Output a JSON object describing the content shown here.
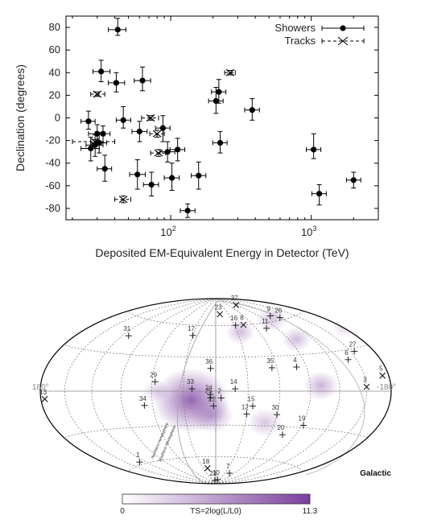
{
  "chart_data": [
    {
      "type": "scatter",
      "ylabel": "Declination (degrees)",
      "xlabel": "Deposited EM-Equivalent Energy in Detector (TeV)",
      "xscale": "log",
      "xlim": [
        18,
        3000
      ],
      "ylim": [
        -90,
        90
      ],
      "yticks": [
        "80",
        "60",
        "40",
        "20",
        "0",
        "-20",
        "-40",
        "-60",
        "-80"
      ],
      "ytick_values": [
        80,
        60,
        40,
        20,
        0,
        -20,
        -40,
        -60,
        -80
      ],
      "xticks": [
        "10^2",
        "10^3"
      ],
      "xtick_values": [
        100,
        1000
      ],
      "grid": false,
      "legend_placement": "top-right",
      "series": [
        {
          "name": "Showers",
          "marker": "filled-circle",
          "line": "solid",
          "points": [
            {
              "x": 42,
              "y": 78,
              "xlo": 36,
              "xhi": 48,
              "ylo": 73,
              "yhi": 88
            },
            {
              "x": 32,
              "y": 41,
              "xlo": 28,
              "xhi": 37,
              "ylo": 32,
              "yhi": 51
            },
            {
              "x": 41,
              "y": 31,
              "xlo": 36,
              "xhi": 47,
              "ylo": 23,
              "yhi": 40
            },
            {
              "x": 63,
              "y": 33,
              "xlo": 55,
              "xhi": 72,
              "ylo": 24,
              "yhi": 45
            },
            {
              "x": 26,
              "y": -3,
              "xlo": 23,
              "xhi": 29,
              "ylo": -10,
              "yhi": 6
            },
            {
              "x": 46,
              "y": -2,
              "xlo": 41,
              "xhi": 52,
              "ylo": -9,
              "yhi": 10
            },
            {
              "x": 30,
              "y": -14,
              "xlo": 26,
              "xhi": 34,
              "ylo": -22,
              "yhi": -6
            },
            {
              "x": 33,
              "y": -14,
              "xlo": 29,
              "xhi": 37,
              "ylo": -22,
              "yhi": -7
            },
            {
              "x": 27,
              "y": -27,
              "xlo": 23,
              "xhi": 31,
              "ylo": -38,
              "yhi": -17
            },
            {
              "x": 29,
              "y": -24,
              "xlo": 25,
              "xhi": 33,
              "ylo": -34,
              "yhi": -15
            },
            {
              "x": 31,
              "y": -22,
              "xlo": 27,
              "xhi": 35,
              "ylo": -31,
              "yhi": -13
            },
            {
              "x": 34,
              "y": -45,
              "xlo": 30,
              "xhi": 38,
              "ylo": -56,
              "yhi": -33
            },
            {
              "x": 60,
              "y": -12,
              "xlo": 53,
              "xhi": 68,
              "ylo": -21,
              "yhi": -3
            },
            {
              "x": 88,
              "y": -9,
              "xlo": 78,
              "xhi": 99,
              "ylo": -21,
              "yhi": 2
            },
            {
              "x": 95,
              "y": -30,
              "xlo": 84,
              "xhi": 107,
              "ylo": -39,
              "yhi": -21
            },
            {
              "x": 112,
              "y": -28,
              "xlo": 99,
              "xhi": 126,
              "ylo": -38,
              "yhi": -18
            },
            {
              "x": 58,
              "y": -50,
              "xlo": 51,
              "xhi": 66,
              "ylo": -63,
              "yhi": -37
            },
            {
              "x": 73,
              "y": -59,
              "xlo": 64,
              "xhi": 82,
              "ylo": -69,
              "yhi": -48
            },
            {
              "x": 102,
              "y": -53,
              "xlo": 90,
              "xhi": 115,
              "ylo": -64,
              "yhi": -40
            },
            {
              "x": 132,
              "y": -82,
              "xlo": 117,
              "xhi": 149,
              "ylo": -88,
              "yhi": -76
            },
            {
              "x": 158,
              "y": -51,
              "xlo": 140,
              "xhi": 178,
              "ylo": -63,
              "yhi": -39
            },
            {
              "x": 210,
              "y": 15,
              "xlo": 186,
              "xhi": 236,
              "ylo": 4,
              "yhi": 27
            },
            {
              "x": 220,
              "y": 23,
              "xlo": 195,
              "xhi": 247,
              "ylo": 13,
              "yhi": 34
            },
            {
              "x": 225,
              "y": -22,
              "xlo": 199,
              "xhi": 252,
              "ylo": -31,
              "yhi": -12
            },
            {
              "x": 380,
              "y": 7,
              "xlo": 336,
              "xhi": 428,
              "ylo": -2,
              "yhi": 17
            },
            {
              "x": 1040,
              "y": -28,
              "xlo": 922,
              "xhi": 1170,
              "ylo": -36,
              "yhi": -14
            },
            {
              "x": 1140,
              "y": -67,
              "xlo": 1010,
              "xhi": 1280,
              "ylo": -77,
              "yhi": -59
            },
            {
              "x": 2000,
              "y": -55,
              "xlo": 1780,
              "xhi": 2250,
              "ylo": -62,
              "yhi": -48
            }
          ]
        },
        {
          "name": "Tracks",
          "marker": "x-cross",
          "line": "dashed",
          "points": [
            {
              "x": 265,
              "y": 40,
              "xlo": 242,
              "xhi": 288,
              "ylo": 38,
              "yhi": 42
            },
            {
              "x": 30,
              "y": 21,
              "xlo": 27,
              "xhi": 34,
              "ylo": 19,
              "yhi": 23
            },
            {
              "x": 72,
              "y": 0,
              "xlo": 62,
              "xhi": 82,
              "ylo": -2,
              "yhi": 2
            },
            {
              "x": 80,
              "y": -14,
              "xlo": 71,
              "xhi": 90,
              "ylo": -17,
              "yhi": -11
            },
            {
              "x": 82,
              "y": -31,
              "xlo": 72,
              "xhi": 92,
              "ylo": -34,
              "yhi": -28
            },
            {
              "x": 29,
              "y": -21,
              "xlo": 20,
              "xhi": 40,
              "ylo": -23,
              "yhi": -19
            },
            {
              "x": 46,
              "y": -72,
              "xlo": 40,
              "xhi": 52,
              "ylo": -75,
              "yhi": -69
            }
          ]
        }
      ]
    },
    {
      "type": "heatmap",
      "projection": "hammer-aitoff",
      "corner_labels": {
        "left": "180°",
        "right": "-180°",
        "galactic": "Galactic"
      },
      "plane_labels": {
        "north": "Northern Hemisphere",
        "south": "Southern Hemisphere"
      },
      "colorbar": {
        "min": "0",
        "max": "11.3",
        "label": "TS=2log(L/L0)",
        "low_color": "#ffffff",
        "high_color": "#7b3f9e"
      },
      "hotspots": [
        {
          "x": 0.43,
          "y": 0.55,
          "r": 1.0,
          "a": 0.8
        },
        {
          "x": 0.49,
          "y": 0.63,
          "r": 0.55,
          "a": 0.45
        },
        {
          "x": 0.64,
          "y": 0.67,
          "r": 0.45,
          "a": 0.3
        },
        {
          "x": 0.8,
          "y": 0.47,
          "r": 0.45,
          "a": 0.4
        },
        {
          "x": 0.73,
          "y": 0.22,
          "r": 0.38,
          "a": 0.35
        },
        {
          "x": 0.57,
          "y": 0.18,
          "r": 0.38,
          "a": 0.35
        },
        {
          "x": 0.33,
          "y": 0.5,
          "r": 0.35,
          "a": 0.25
        },
        {
          "x": 0.87,
          "y": 0.15,
          "r": 0.35,
          "a": 0.25
        },
        {
          "x": 0.66,
          "y": 0.11,
          "r": 0.4,
          "a": 0.3
        }
      ],
      "sources": [
        {
          "id": "1",
          "lon": 130,
          "lat": -58,
          "type": "shower"
        },
        {
          "id": "2",
          "lon": -5,
          "lat": -6,
          "type": "shower"
        },
        {
          "id": "3",
          "lon": -150,
          "lat": 3,
          "type": "track"
        },
        {
          "id": "4",
          "lon": -80,
          "lat": 20,
          "type": "shower"
        },
        {
          "id": "5",
          "lon": -172,
          "lat": 10,
          "type": "track"
        },
        {
          "id": "6",
          "lon": -140,
          "lat": 23,
          "type": "shower"
        },
        {
          "id": "7",
          "lon": -45,
          "lat": -77,
          "type": "shower"
        },
        {
          "id": "8",
          "lon": -45,
          "lat": 60,
          "type": "track"
        },
        {
          "id": "9",
          "lon": -110,
          "lat": 65,
          "type": "shower"
        },
        {
          "id": "10",
          "lon": -15,
          "lat": -85,
          "type": "shower"
        },
        {
          "id": "11",
          "lon": -75,
          "lat": 55,
          "type": "shower"
        },
        {
          "id": "12",
          "lon": -30,
          "lat": -20,
          "type": "shower"
        },
        {
          "id": "13",
          "lon": 175,
          "lat": -5,
          "type": "track"
        },
        {
          "id": "14",
          "lon": -18,
          "lat": 2,
          "type": "shower"
        },
        {
          "id": "15",
          "lon": -35,
          "lat": -13,
          "type": "shower"
        },
        {
          "id": "16",
          "lon": -32,
          "lat": 60,
          "type": "shower"
        },
        {
          "id": "17",
          "lon": 30,
          "lat": 50,
          "type": "shower"
        },
        {
          "id": "18",
          "lon": 20,
          "lat": -72,
          "type": "track"
        },
        {
          "id": "19",
          "lon": -92,
          "lat": -28,
          "type": "shower"
        },
        {
          "id": "20",
          "lon": -75,
          "lat": -37,
          "type": "shower"
        },
        {
          "id": "21",
          "lon": 10,
          "lat": -86,
          "type": "shower"
        },
        {
          "id": "22",
          "lon": 2,
          "lat": -13,
          "type": "shower"
        },
        {
          "id": "23",
          "lon": -10,
          "lat": 72,
          "type": "track"
        },
        {
          "id": "24",
          "lon": 5,
          "lat": -3,
          "type": "shower"
        },
        {
          "id": "25",
          "lon": 5,
          "lat": -6,
          "type": "shower"
        },
        {
          "id": "26",
          "lon": -120,
          "lat": 62,
          "type": "shower"
        },
        {
          "id": "27",
          "lon": -155,
          "lat": 28,
          "type": "shower"
        },
        {
          "id": "29",
          "lon": 57,
          "lat": 8,
          "type": "shower"
        },
        {
          "id": "30",
          "lon": -60,
          "lat": -20,
          "type": "shower"
        },
        {
          "id": "31",
          "lon": 112,
          "lat": 45,
          "type": "shower"
        },
        {
          "id": "33",
          "lon": 22,
          "lat": 2,
          "type": "shower"
        },
        {
          "id": "34",
          "lon": 68,
          "lat": -12,
          "type": "shower"
        },
        {
          "id": "35",
          "lon": -55,
          "lat": 20,
          "type": "shower"
        },
        {
          "id": "36",
          "lon": 5,
          "lat": 20,
          "type": "shower"
        },
        {
          "id": "37",
          "lon": -90,
          "lat": 80,
          "type": "track"
        }
      ]
    }
  ]
}
